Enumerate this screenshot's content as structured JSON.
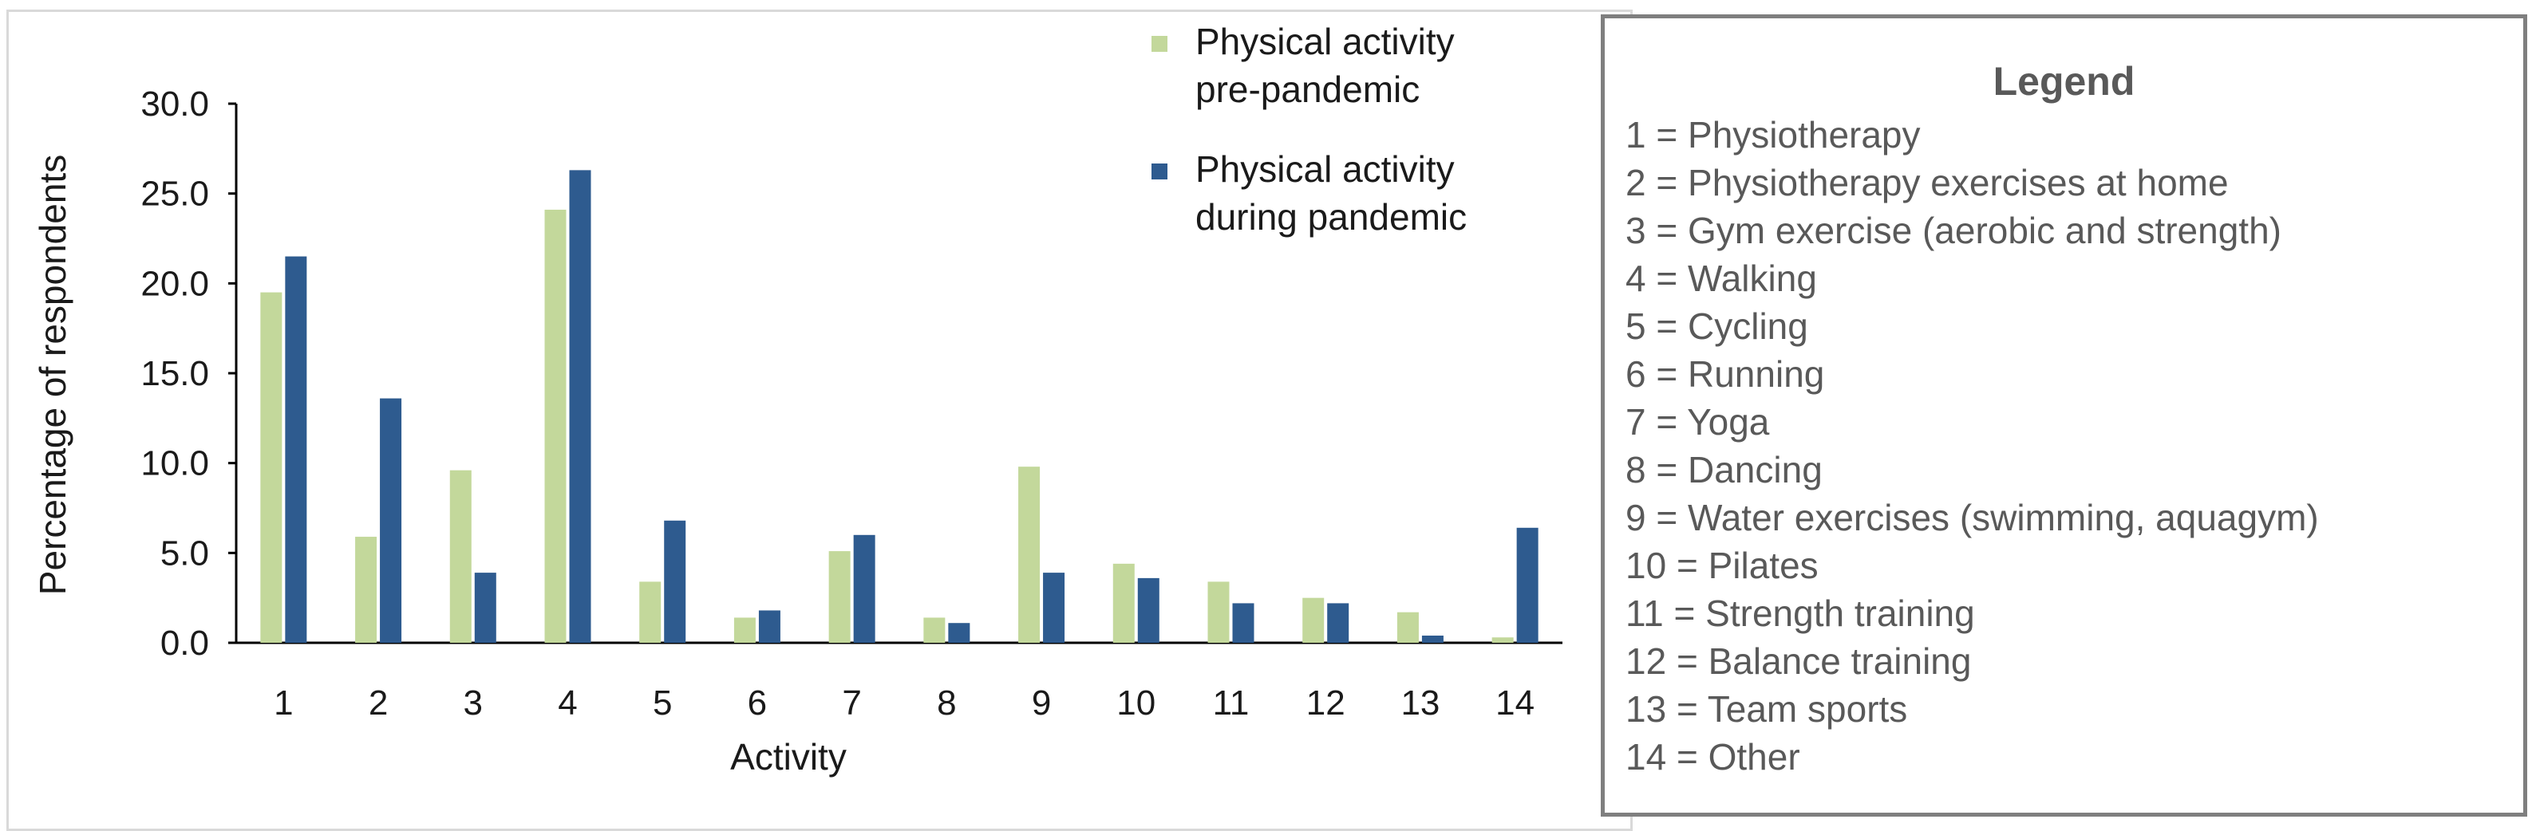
{
  "chart_data": {
    "type": "bar",
    "title": "",
    "xlabel": "Activity",
    "ylabel": "Percentage of respondents",
    "ylim": [
      0,
      30
    ],
    "yticks": [
      "0.0",
      "5.0",
      "10.0",
      "15.0",
      "20.0",
      "25.0",
      "30.0"
    ],
    "categories": [
      "1",
      "2",
      "3",
      "4",
      "5",
      "6",
      "7",
      "8",
      "9",
      "10",
      "11",
      "12",
      "13",
      "14"
    ],
    "series": [
      {
        "name": "Physical activity pre-pandemic",
        "color": "#c3d89b",
        "values": [
          19.5,
          5.9,
          9.6,
          24.1,
          3.4,
          1.4,
          5.1,
          1.4,
          9.8,
          4.4,
          3.4,
          2.5,
          1.7,
          0.3
        ]
      },
      {
        "name": "Physical activity during pandemic",
        "color": "#2e5b8f",
        "values": [
          21.5,
          13.6,
          3.9,
          26.3,
          6.8,
          1.8,
          6.0,
          1.1,
          3.9,
          3.6,
          2.2,
          2.2,
          0.4,
          6.4
        ]
      }
    ],
    "legend_placement": "top-right",
    "grid": false
  },
  "side_legend": {
    "title": "Legend",
    "items": [
      "1 = Physiotherapy",
      "2 = Physiotherapy exercises at home",
      "3 = Gym exercise (aerobic and strength)",
      "4 = Walking",
      "5 = Cycling",
      "6 = Running",
      "7 = Yoga",
      "8 = Dancing",
      "9 = Water exercises (swimming, aquagym)",
      "10 = Pilates",
      "11 = Strength training",
      "12 = Balance training",
      "13 = Team sports",
      "14 = Other"
    ]
  }
}
